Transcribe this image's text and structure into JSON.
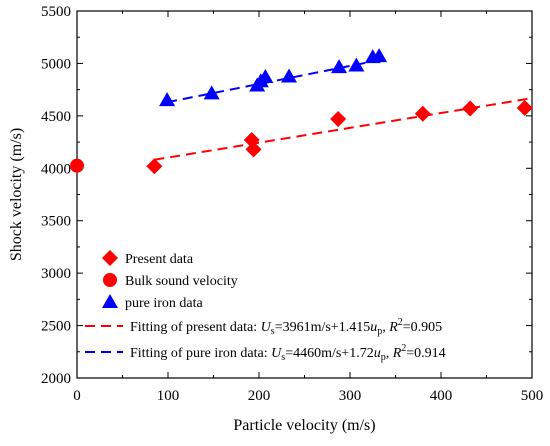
{
  "chart_data": {
    "type": "scatter",
    "xlabel": "Particle velocity (m/s)",
    "ylabel": "Shock velocity (m/s)",
    "xlim": [
      0,
      500
    ],
    "ylim": [
      2000,
      5500
    ],
    "xticks": [
      "0",
      "100",
      "200",
      "300",
      "400",
      "500"
    ],
    "yticks": [
      "2000",
      "2500",
      "3000",
      "3500",
      "4000",
      "4500",
      "5000",
      "5500"
    ],
    "grid": false,
    "legend_position": "bottom-left",
    "series": [
      {
        "name": "Present data",
        "marker": "diamond",
        "color": "#ff0000",
        "points": [
          [
            85,
            4020
          ],
          [
            192,
            4270
          ],
          [
            194,
            4180
          ],
          [
            287,
            4470
          ],
          [
            380,
            4520
          ],
          [
            432,
            4570
          ],
          [
            492,
            4575
          ]
        ]
      },
      {
        "name": "Bulk sound velocity",
        "marker": "circle",
        "color": "#ff0000",
        "points": [
          [
            0,
            4025
          ]
        ]
      },
      {
        "name": "pure iron data",
        "marker": "triangle",
        "color": "#0000ff",
        "points": [
          [
            99,
            4650
          ],
          [
            148,
            4715
          ],
          [
            198,
            4790
          ],
          [
            202,
            4830
          ],
          [
            207,
            4870
          ],
          [
            233,
            4875
          ],
          [
            288,
            4965
          ],
          [
            307,
            4980
          ],
          [
            325,
            5060
          ],
          [
            332,
            5070
          ]
        ]
      }
    ],
    "fits": [
      {
        "label": "Fitting of present data: U_s=3961m/s+1.415u_p, R^2=0.905",
        "color": "#ff0000",
        "dash": true,
        "intercept": 3961,
        "slope": 1.415,
        "x_range": [
          85,
          500
        ]
      },
      {
        "label": "Fitting of pure iron data: U_s=4460m/s+1.72u_p, R^2=0.914",
        "color": "#0000ff",
        "dash": true,
        "intercept": 4460,
        "slope": 1.72,
        "x_range": [
          99,
          332
        ]
      }
    ]
  },
  "legend": {
    "fit1": {
      "prefix": "Fitting of present data: ",
      "U": "U",
      "s": "s",
      "eq": "=3961m/s+1.415",
      "u": "u",
      "p": "p",
      "sep": ", ",
      "R": "R",
      "sup": "2",
      "val": "=0.905"
    },
    "fit2": {
      "prefix": "Fitting of pure iron data: ",
      "U": "U",
      "s": "s",
      "eq": "=4460m/s+1.72",
      "u": "u",
      "p": "p",
      "sep": ", ",
      "R": "R",
      "sup": "2",
      "val": "=0.914"
    }
  }
}
